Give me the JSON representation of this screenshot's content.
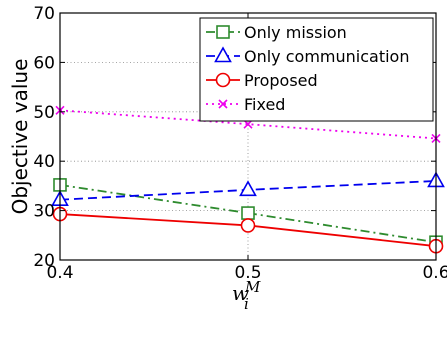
{
  "chart_data": {
    "type": "line",
    "title": "",
    "ylabel": "Objective value",
    "xlabel": {
      "base": "w",
      "sup": "M",
      "sub": "i"
    },
    "x": [
      0.4,
      0.5,
      0.6
    ],
    "x_ticks": [
      "0.4",
      "0.5",
      "0.6"
    ],
    "xlim": [
      0.4,
      0.6
    ],
    "ylim": [
      20,
      70
    ],
    "y_ticks": [
      "20",
      "30",
      "40",
      "50",
      "60",
      "70"
    ],
    "y_tick_values": [
      20,
      30,
      40,
      50,
      60,
      70
    ],
    "grid": true,
    "legend_position": "top-right",
    "series": [
      {
        "name": "Only mission",
        "values": [
          35.2,
          29.5,
          23.6
        ],
        "color": "#2e8b2e",
        "dash": "dashdot",
        "marker": "square"
      },
      {
        "name": "Only communication",
        "values": [
          32.2,
          34.2,
          36.0
        ],
        "color": "#0000ee",
        "dash": "dash",
        "marker": "triangle"
      },
      {
        "name": "Proposed",
        "values": [
          29.3,
          27.0,
          22.8
        ],
        "color": "#ee0000",
        "dash": "solid",
        "marker": "circle"
      },
      {
        "name": "Fixed",
        "values": [
          50.3,
          47.5,
          44.6
        ],
        "color": "#ee00ee",
        "dash": "dot",
        "marker": "x"
      }
    ]
  }
}
